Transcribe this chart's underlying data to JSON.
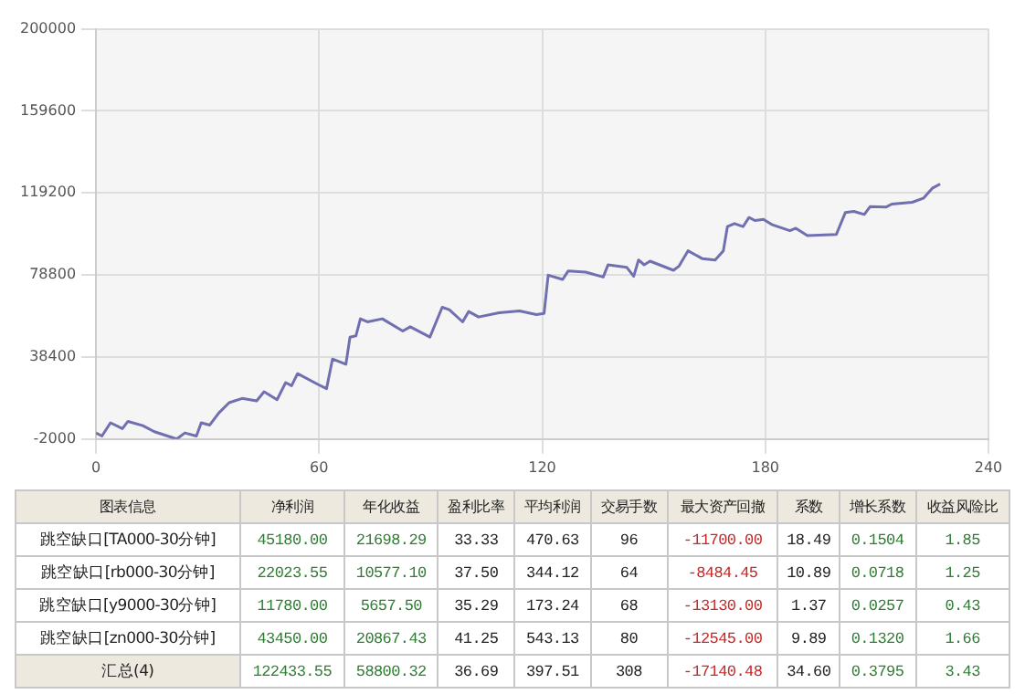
{
  "chart_data": [
    {
      "type": "line",
      "xlim": [
        0,
        240
      ],
      "xticks": [
        0,
        60,
        120,
        180,
        240
      ],
      "ylim": [
        -2000,
        200000
      ],
      "yticks": [
        -2000,
        38400,
        78800,
        119200,
        159600,
        200000
      ],
      "grid": true,
      "legend": false,
      "marker": "none",
      "line_style": "solid",
      "series": [
        {
          "color": "#7070b0",
          "x": [
            0,
            1.6,
            3.9,
            7.1,
            8.6,
            12.6,
            15.7,
            21.7,
            23.9,
            27,
            28.3,
            30.6,
            33,
            35.8,
            39.3,
            43.2,
            45.2,
            48.7,
            51,
            52.6,
            54.2,
            59.7,
            62,
            63.6,
            67.2,
            68.3,
            69.9,
            71.1,
            73,
            77,
            82.5,
            84.5,
            89.8,
            93.1,
            95,
            98.6,
            100.2,
            102.9,
            108.4,
            113.9,
            118.4,
            120.5,
            121.6,
            125.5,
            127,
            131.7,
            136.4,
            137.7,
            142.7,
            144.6,
            145.9,
            147.4,
            149,
            155.3,
            156.8,
            159.2,
            163.1,
            166.5,
            168.7,
            169.8,
            171.7,
            174,
            175.6,
            177.2,
            179.5,
            181.9,
            186.6,
            188.2,
            191.3,
            199.1,
            201.5,
            203.8,
            206.6,
            208.2,
            212.4,
            214,
            219.5,
            222.6,
            224.9,
            227
          ],
          "values": [
            1000,
            -500,
            6000,
            3100,
            6700,
            4600,
            1600,
            -2000,
            1000,
            -500,
            6000,
            4900,
            10800,
            15900,
            18000,
            16800,
            21300,
            17400,
            25800,
            24300,
            30200,
            24900,
            22800,
            37400,
            34800,
            48200,
            48800,
            57200,
            55700,
            57200,
            51200,
            53300,
            48200,
            62900,
            61700,
            55700,
            60800,
            58100,
            60200,
            61100,
            59300,
            59900,
            78700,
            76600,
            80800,
            80200,
            77800,
            83800,
            82600,
            78100,
            86200,
            83800,
            85600,
            81100,
            83200,
            90700,
            86800,
            86200,
            90700,
            102600,
            104100,
            102600,
            107100,
            105600,
            106200,
            103500,
            100600,
            101800,
            98200,
            98800,
            109500,
            110100,
            108600,
            112500,
            112200,
            113700,
            114600,
            116700,
            121500,
            123600
          ]
        }
      ]
    },
    {
      "type": "other",
      "annotations": [
        "图表信息",
        "净利润",
        "年化收益",
        "盈利比率",
        "平均利润",
        "交易手数",
        "最大资产回撤",
        "系数",
        "增长系数",
        "收益风险比",
        "跳空缺口[TA000-30分钟]",
        "45180.00",
        "21698.29",
        "33.33",
        "470.63",
        "96",
        "-11700.00",
        "18.49",
        "0.1504",
        "1.85",
        "跳空缺口[rb000-30分钟]",
        "22023.55",
        "10577.10",
        "37.50",
        "344.12",
        "64",
        "-8484.45",
        "10.89",
        "0.0718",
        "1.25",
        "跳空缺口[y9000-30分钟]",
        "11780.00",
        "5657.50",
        "35.29",
        "173.24",
        "68",
        "-13130.00",
        "1.37",
        "0.0257",
        "0.43",
        "跳空缺口[zn000-30分钟]",
        "43450.00",
        "20867.43",
        "41.25",
        "543.13",
        "80",
        "-12545.00",
        "9.89",
        "0.1320",
        "1.66",
        "汇总(4)",
        "122433.55",
        "58800.32",
        "36.69",
        "397.51",
        "308",
        "-17140.48",
        "34.60",
        "0.3795",
        "3.43"
      ]
    }
  ]
}
